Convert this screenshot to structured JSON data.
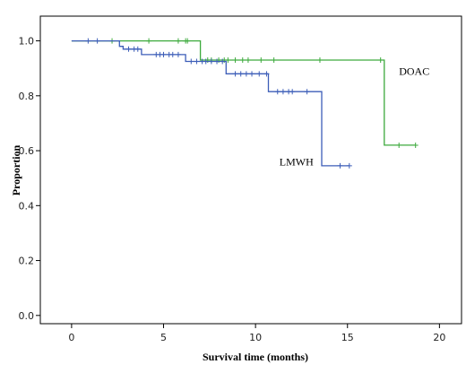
{
  "chart_data": {
    "type": "line",
    "subtype": "kaplan-meier step",
    "xlabel": "Survival time (months)",
    "ylabel": "Proportion",
    "xlim": [
      -1.7,
      21.2
    ],
    "ylim": [
      -0.03,
      1.09
    ],
    "xticks": [
      "0",
      "5",
      "10",
      "15",
      "20"
    ],
    "yticks": [
      "0.0",
      "0.2",
      "0.4",
      "0.6",
      "0.8",
      "1.0"
    ],
    "grid": false,
    "legend": "none (series labeled inline)",
    "series": [
      {
        "name": "DOAC",
        "color": "#3daa3d",
        "label_position": [
          17.8,
          0.89
        ],
        "steps": [
          [
            0,
            1.0
          ],
          [
            7.0,
            1.0
          ],
          [
            7.0,
            0.93
          ],
          [
            17.0,
            0.93
          ],
          [
            17.0,
            0.62
          ],
          [
            18.7,
            0.62
          ]
        ],
        "censored": [
          2.2,
          4.2,
          5.8,
          6.2,
          6.3,
          7.4,
          7.6,
          8.0,
          8.3,
          8.5,
          8.9,
          9.3,
          9.6,
          10.3,
          11.0,
          13.5,
          16.8,
          17.8,
          18.7
        ]
      },
      {
        "name": "LMWH",
        "color": "#3d5eb8",
        "label_position": [
          11.3,
          0.56
        ],
        "steps": [
          [
            0,
            1.0
          ],
          [
            2.6,
            1.0
          ],
          [
            2.6,
            0.98
          ],
          [
            2.8,
            0.98
          ],
          [
            2.8,
            0.97
          ],
          [
            3.8,
            0.97
          ],
          [
            3.8,
            0.95
          ],
          [
            6.2,
            0.95
          ],
          [
            6.2,
            0.925
          ],
          [
            8.4,
            0.925
          ],
          [
            8.4,
            0.88
          ],
          [
            10.7,
            0.88
          ],
          [
            10.7,
            0.815
          ],
          [
            13.6,
            0.815
          ],
          [
            13.6,
            0.545
          ],
          [
            15.1,
            0.545
          ]
        ],
        "censored": [
          0.9,
          1.4,
          3.1,
          3.4,
          3.6,
          4.6,
          4.8,
          5.0,
          5.3,
          5.5,
          5.8,
          6.5,
          6.8,
          7.1,
          7.3,
          7.6,
          7.9,
          8.2,
          8.9,
          9.2,
          9.5,
          9.8,
          10.2,
          10.6,
          11.2,
          11.5,
          11.8,
          12.0,
          12.8,
          14.6,
          15.1
        ]
      }
    ]
  }
}
